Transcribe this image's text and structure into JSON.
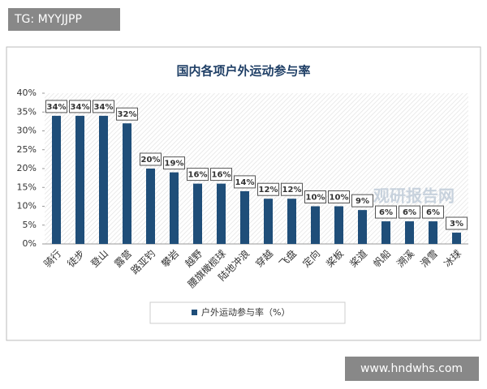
{
  "overlay_top": "TG: MYYJJPP",
  "overlay_bottom": "www.hndwhs.com",
  "watermark": "观研报告网",
  "chart_data": {
    "type": "bar",
    "title": "国内各项户外运动参与率",
    "categories": [
      "骑行",
      "徒步",
      "登山",
      "露营",
      "路亚钓",
      "攀岩",
      "越野",
      "腰旗橄榄球",
      "陆地冲浪",
      "穿越",
      "飞盘",
      "定向",
      "桨板",
      "桨道",
      "帆船",
      "溯溪",
      "滑雪",
      "冰球"
    ],
    "series": [
      {
        "name": "户外运动参与率（%）",
        "color": "#1f4e79",
        "values": [
          34,
          34,
          34,
          32,
          20,
          19,
          16,
          16,
          14,
          12,
          12,
          10,
          10,
          9,
          6,
          6,
          6,
          3
        ],
        "value_labels": [
          "34%",
          "34%",
          "34%",
          "32%",
          "20%",
          "19%",
          "16%",
          "16%",
          "14%",
          "12%",
          "12%",
          "10%",
          "10%",
          "9%",
          "6%",
          "6%",
          "6%",
          "3%"
        ]
      }
    ],
    "ylim": [
      0,
      40
    ],
    "yticks": [
      {
        "value": 0,
        "label": "0%"
      },
      {
        "value": 5,
        "label": "5%"
      },
      {
        "value": 10,
        "label": "10%"
      },
      {
        "value": 15,
        "label": "15%"
      },
      {
        "value": 20,
        "label": "20%"
      },
      {
        "value": 25,
        "label": "25%"
      },
      {
        "value": 30,
        "label": "30%"
      },
      {
        "value": 35,
        "label": "35%"
      },
      {
        "value": 40,
        "label": "40%"
      }
    ]
  }
}
